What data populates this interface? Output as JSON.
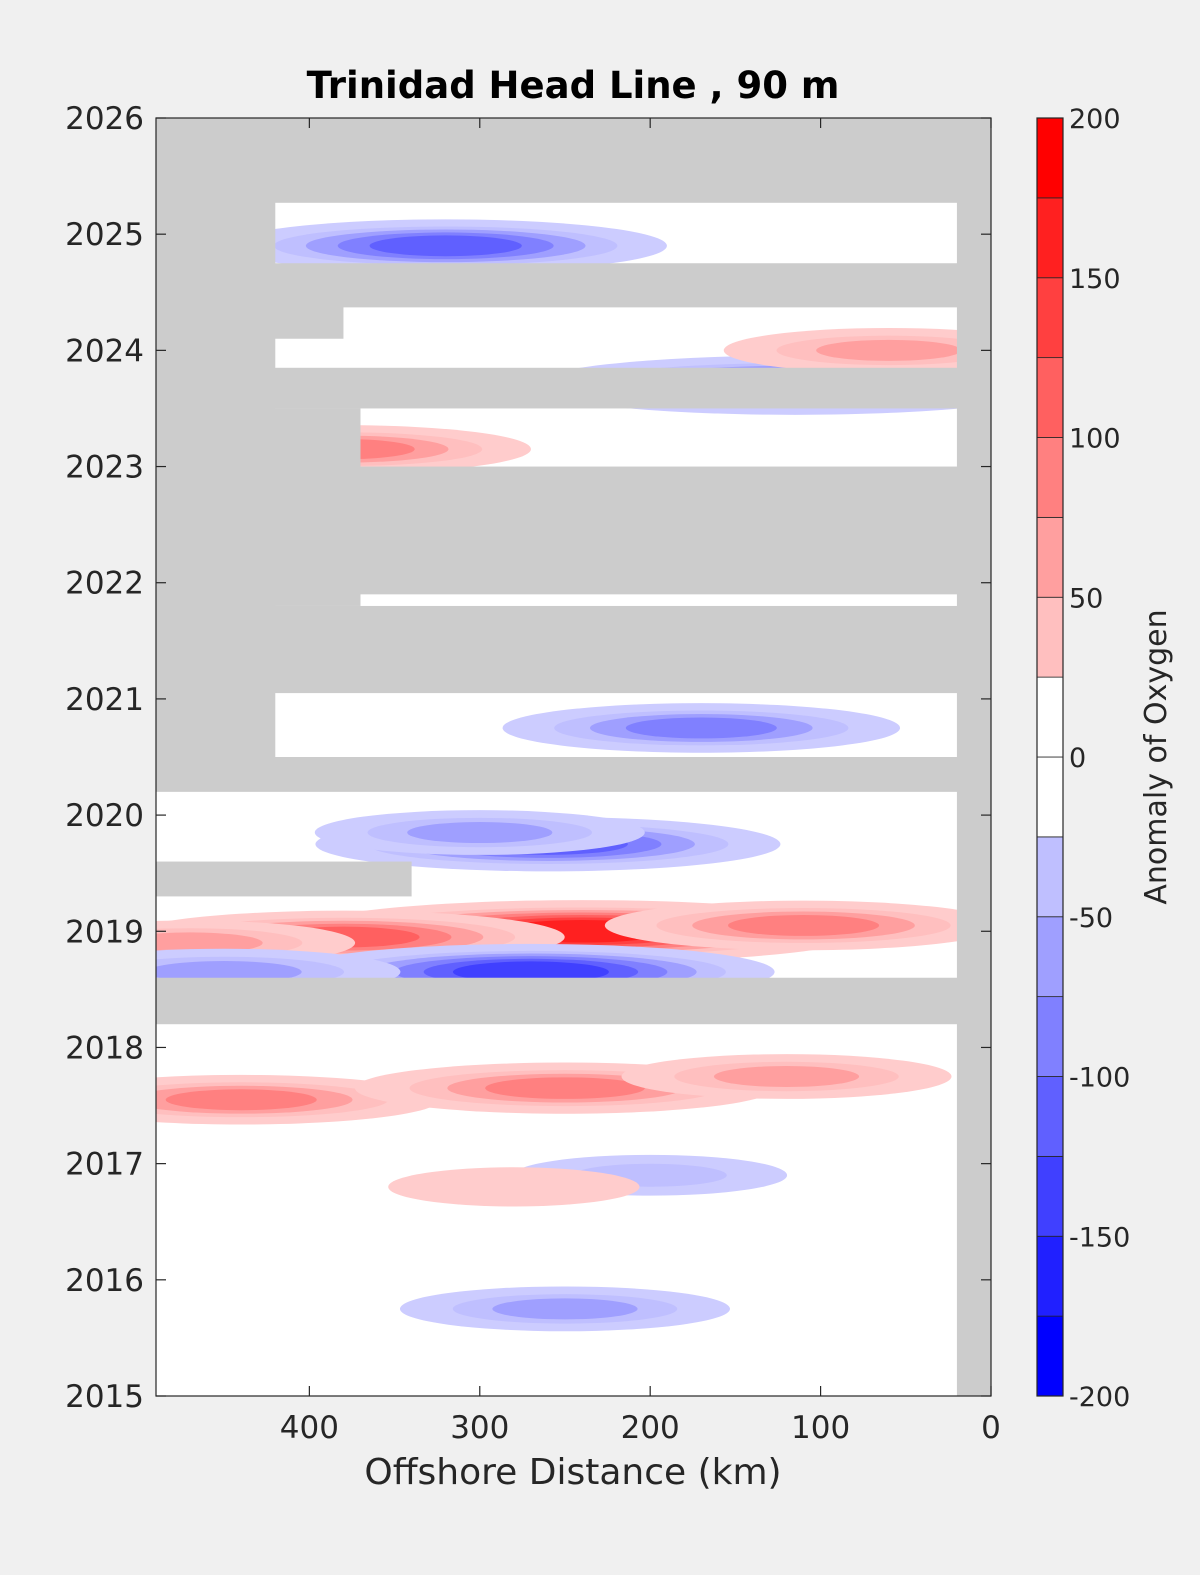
{
  "chart_data": {
    "type": "heatmap",
    "title": "Trinidad Head Line , 90 m",
    "xlabel": "Offshore Distance (km)",
    "ylabel": "",
    "xlim": [
      490,
      0
    ],
    "ylim": [
      2015,
      2026
    ],
    "x_ticks": [
      400,
      300,
      200,
      100,
      0
    ],
    "y_ticks": [
      2015,
      2016,
      2017,
      2018,
      2019,
      2020,
      2021,
      2022,
      2023,
      2024,
      2025,
      2026
    ],
    "colorbar": {
      "label": "Anomaly of Oxygen",
      "limits": [
        -200,
        200
      ],
      "ticks": [
        200,
        150,
        100,
        50,
        0,
        -50,
        -100,
        -150,
        -200
      ],
      "levels": [
        -200,
        -175,
        -150,
        -125,
        -100,
        -75,
        -50,
        -25,
        0,
        25,
        50,
        75,
        100,
        125,
        150,
        175,
        200
      ],
      "colormap": "blue-white-red (diverging)"
    },
    "missing_color": "#cccccc",
    "no_data_bands_years": [
      [
        2025.27,
        2026
      ],
      [
        2024.37,
        2024.75
      ],
      [
        2023.5,
        2023.85
      ],
      [
        2021.9,
        2023.0
      ],
      [
        2021.05,
        2021.8
      ],
      [
        2020.2,
        2020.5
      ],
      [
        2018.2,
        2018.6
      ]
    ],
    "anomaly_features": [
      {
        "year": 2019.0,
        "x_km": 240,
        "value": 190
      },
      {
        "year": 2018.95,
        "x_km": 380,
        "value": 130
      },
      {
        "year": 2019.05,
        "x_km": 110,
        "value": 110
      },
      {
        "year": 2018.9,
        "x_km": 470,
        "value": 80
      },
      {
        "year": 2017.55,
        "x_km": 440,
        "value": 110
      },
      {
        "year": 2017.65,
        "x_km": 250,
        "value": 120
      },
      {
        "year": 2017.75,
        "x_km": 120,
        "value": 80
      },
      {
        "year": 2018.65,
        "x_km": 270,
        "value": -150
      },
      {
        "year": 2018.65,
        "x_km": 450,
        "value": -90
      },
      {
        "year": 2019.75,
        "x_km": 260,
        "value": -140
      },
      {
        "year": 2019.85,
        "x_km": 300,
        "value": -80
      },
      {
        "year": 2023.7,
        "x_km": 115,
        "value": -170
      },
      {
        "year": 2024.9,
        "x_km": 320,
        "value": -130
      },
      {
        "year": 2020.75,
        "x_km": 170,
        "value": -110
      },
      {
        "year": 2023.15,
        "x_km": 380,
        "value": 100
      },
      {
        "year": 2024.0,
        "x_km": 60,
        "value": 80
      },
      {
        "year": 2015.75,
        "x_km": 250,
        "value": -80
      },
      {
        "year": 2016.9,
        "x_km": 200,
        "value": -55
      },
      {
        "year": 2016.8,
        "x_km": 280,
        "value": 45
      }
    ]
  }
}
